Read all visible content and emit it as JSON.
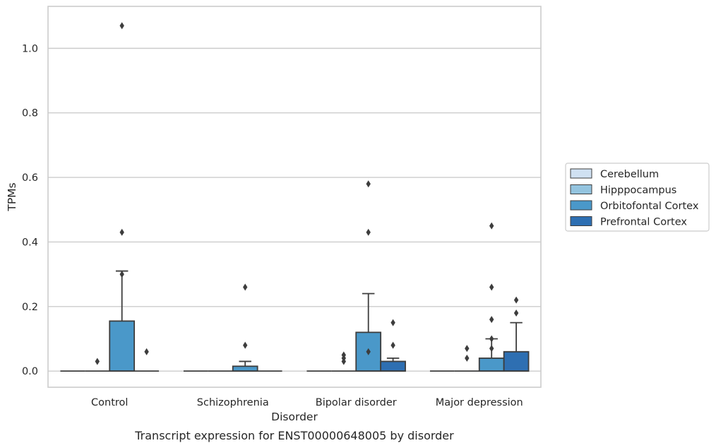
{
  "chart_data": {
    "type": "box",
    "title": "",
    "caption": "Transcript expression for ENST00000648005 by disorder",
    "xlabel": "Disorder",
    "ylabel": "TPMs",
    "ylim": [
      -0.05,
      1.13
    ],
    "yticks": [
      0.0,
      0.2,
      0.4,
      0.6,
      0.8,
      1.0
    ],
    "ytick_labels": [
      "0.0",
      "0.2",
      "0.4",
      "0.6",
      "0.8",
      "1.0"
    ],
    "grid": "horizontal",
    "legend_position": "right",
    "categories": [
      "Control",
      "Schizophrenia",
      "Bipolar disorder",
      "Major depression"
    ],
    "series": [
      {
        "name": "Cerebellum",
        "color": "#d0e1f2",
        "boxes": [
          {
            "q1": 0,
            "median": 0,
            "q3": 0,
            "whisker_low": 0,
            "whisker_high": 0,
            "outliers": []
          },
          {
            "q1": 0,
            "median": 0,
            "q3": 0,
            "whisker_low": 0,
            "whisker_high": 0,
            "outliers": []
          },
          {
            "q1": 0,
            "median": 0,
            "q3": 0,
            "whisker_low": 0,
            "whisker_high": 0,
            "outliers": []
          },
          {
            "q1": 0,
            "median": 0,
            "q3": 0,
            "whisker_low": 0,
            "whisker_high": 0,
            "outliers": []
          }
        ]
      },
      {
        "name": "Hipppocampus",
        "color": "#94c4df",
        "boxes": [
          {
            "q1": 0,
            "median": 0,
            "q3": 0,
            "whisker_low": 0,
            "whisker_high": 0,
            "outliers": [
              0.03
            ]
          },
          {
            "q1": 0,
            "median": 0,
            "q3": 0,
            "whisker_low": 0,
            "whisker_high": 0,
            "outliers": []
          },
          {
            "q1": 0,
            "median": 0,
            "q3": 0,
            "whisker_low": 0,
            "whisker_high": 0,
            "outliers": [
              0.03,
              0.04,
              0.05
            ]
          },
          {
            "q1": 0,
            "median": 0,
            "q3": 0,
            "whisker_low": 0,
            "whisker_high": 0,
            "outliers": [
              0.04,
              0.07
            ]
          }
        ]
      },
      {
        "name": "Orbitofontal Cortex",
        "color": "#4a98c9",
        "boxes": [
          {
            "q1": 0,
            "median": 0,
            "q3": 0.155,
            "whisker_low": 0,
            "whisker_high": 0.31,
            "outliers": [
              0.3,
              0.43,
              1.07
            ]
          },
          {
            "q1": 0,
            "median": 0,
            "q3": 0.015,
            "whisker_low": 0,
            "whisker_high": 0.03,
            "outliers": [
              0.08,
              0.26
            ]
          },
          {
            "q1": 0,
            "median": 0,
            "q3": 0.12,
            "whisker_low": 0,
            "whisker_high": 0.24,
            "outliers": [
              0.06,
              0.43,
              0.58
            ]
          },
          {
            "q1": 0,
            "median": 0,
            "q3": 0.04,
            "whisker_low": 0,
            "whisker_high": 0.1,
            "outliers": [
              0.07,
              0.1,
              0.16,
              0.26,
              0.45
            ]
          }
        ]
      },
      {
        "name": "Prefrontal Cortex",
        "color": "#2e6fb2",
        "boxes": [
          {
            "q1": 0,
            "median": 0,
            "q3": 0,
            "whisker_low": 0,
            "whisker_high": 0,
            "outliers": [
              0.06
            ]
          },
          {
            "q1": 0,
            "median": 0,
            "q3": 0,
            "whisker_low": 0,
            "whisker_high": 0,
            "outliers": []
          },
          {
            "q1": 0,
            "median": 0,
            "q3": 0.03,
            "whisker_low": 0,
            "whisker_high": 0.04,
            "outliers": [
              0.08,
              0.15
            ]
          },
          {
            "q1": 0,
            "median": 0,
            "q3": 0.06,
            "whisker_low": 0,
            "whisker_high": 0.15,
            "outliers": [
              0.18,
              0.22
            ]
          }
        ]
      }
    ]
  }
}
